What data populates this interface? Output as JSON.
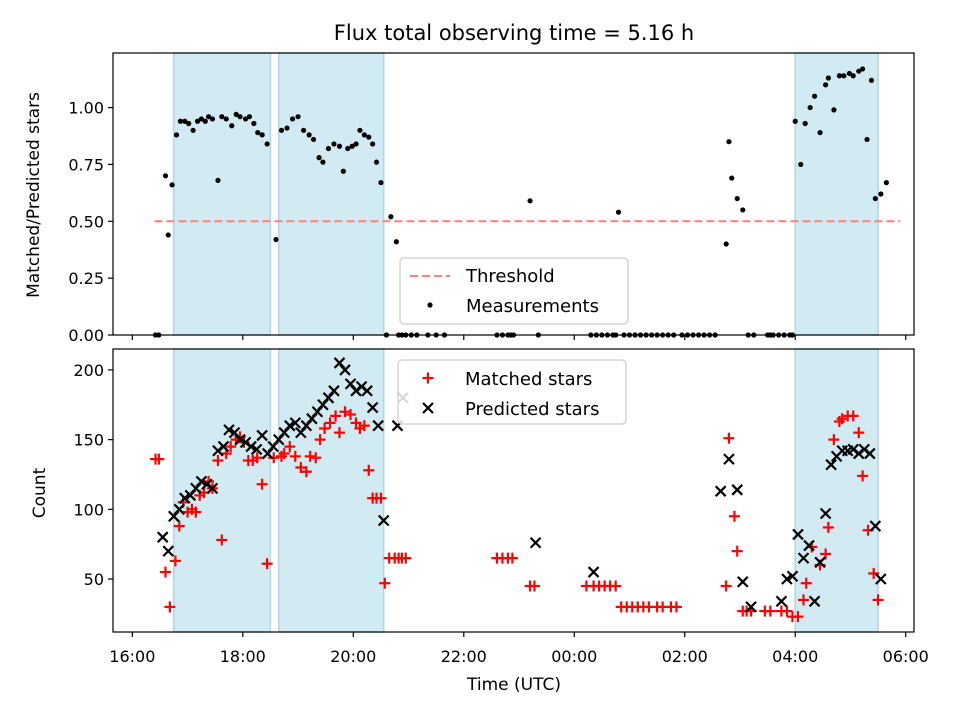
{
  "chart_data": [
    {
      "type": "scatter",
      "title": "Flux total observing time = 5.16 h",
      "xlabel": "",
      "ylabel": "Matched/Predicted stars",
      "xlim": [
        -0.35,
        14.15
      ],
      "ylim": [
        0,
        1.24
      ],
      "yticks": [
        0.0,
        0.25,
        0.5,
        0.75,
        1.0
      ],
      "ytick_labels": [
        "0.00",
        "0.25",
        "0.50",
        "0.75",
        "1.00"
      ],
      "xticks": [
        0,
        2,
        4,
        6,
        8,
        10,
        12,
        14
      ],
      "grid": false,
      "legend": {
        "position": "lower-center",
        "entries": [
          "Threshold",
          "Measurements"
        ]
      },
      "threshold": {
        "name": "Threshold",
        "value": 0.5,
        "x_range": [
          0.4,
          13.9
        ],
        "color": "#ff7f7f"
      },
      "shaded_regions": [
        [
          0.75,
          2.5
        ],
        [
          2.65,
          4.55
        ],
        [
          12.0,
          13.5
        ]
      ],
      "colors": {
        "measurements": "#000000",
        "shade": "#add8e6"
      },
      "series": [
        {
          "name": "Measurements",
          "x": [
            0.42,
            0.48,
            0.6,
            0.65,
            0.72,
            0.8,
            0.87,
            0.95,
            1.02,
            1.1,
            1.18,
            1.25,
            1.32,
            1.38,
            1.45,
            1.55,
            1.62,
            1.7,
            1.8,
            1.88,
            1.95,
            2.05,
            2.12,
            2.2,
            2.27,
            2.35,
            2.44,
            2.6,
            2.7,
            2.8,
            2.9,
            3.0,
            3.1,
            3.2,
            3.28,
            3.38,
            3.45,
            3.55,
            3.65,
            3.75,
            3.82,
            3.9,
            3.98,
            4.05,
            4.12,
            4.2,
            4.28,
            4.35,
            4.42,
            4.5,
            4.6,
            4.68,
            4.78,
            4.82,
            4.88,
            4.95,
            5.05,
            5.15,
            5.35,
            5.5,
            5.65,
            6.6,
            6.7,
            6.8,
            6.85,
            6.9,
            7.2,
            7.35,
            8.3,
            8.4,
            8.5,
            8.6,
            8.7,
            8.75,
            8.8,
            8.9,
            9.0,
            9.1,
            9.2,
            9.3,
            9.4,
            9.5,
            9.6,
            9.7,
            9.8,
            9.95,
            10.05,
            10.15,
            10.25,
            10.35,
            10.45,
            10.55,
            10.75,
            10.8,
            10.85,
            10.95,
            11.05,
            11.15,
            11.25,
            11.95,
            11.5,
            11.55,
            11.6,
            11.7,
            11.8,
            11.9,
            12.0,
            12.1,
            12.18,
            12.27,
            12.35,
            12.45,
            12.55,
            12.6,
            12.7,
            12.8,
            12.88,
            12.98,
            13.05,
            13.15,
            13.22,
            13.3,
            13.38,
            13.45,
            13.55,
            13.65
          ],
          "y": [
            0.0,
            0.0,
            0.7,
            0.44,
            0.66,
            0.88,
            0.94,
            0.94,
            0.93,
            0.9,
            0.94,
            0.95,
            0.94,
            0.96,
            0.95,
            0.68,
            0.96,
            0.95,
            0.92,
            0.97,
            0.96,
            0.95,
            0.96,
            0.93,
            0.89,
            0.88,
            0.84,
            0.42,
            0.9,
            0.91,
            0.95,
            0.96,
            0.9,
            0.88,
            0.86,
            0.78,
            0.76,
            0.82,
            0.84,
            0.83,
            0.72,
            0.82,
            0.83,
            0.84,
            0.9,
            0.88,
            0.87,
            0.84,
            0.76,
            0.67,
            0.0,
            0.52,
            0.41,
            0.0,
            0.0,
            0.0,
            0.0,
            0.0,
            0.0,
            0.0,
            0.0,
            0.0,
            0.0,
            0.0,
            0.0,
            0.0,
            0.59,
            0.0,
            0.0,
            0.0,
            0.0,
            0.0,
            0.0,
            0.0,
            0.54,
            0.0,
            0.0,
            0.0,
            0.0,
            0.0,
            0.0,
            0.0,
            0.0,
            0.0,
            0.0,
            0.0,
            0.0,
            0.0,
            0.0,
            0.0,
            0.0,
            0.0,
            0.4,
            0.85,
            0.69,
            0.6,
            0.55,
            0.0,
            0.0,
            0.0,
            0.0,
            0.0,
            0.0,
            0.0,
            0.0,
            0.0,
            0.94,
            0.75,
            0.93,
            1.0,
            1.05,
            0.89,
            1.1,
            1.13,
            0.99,
            1.14,
            1.14,
            1.15,
            1.14,
            1.16,
            1.17,
            0.86,
            1.12,
            0.6,
            0.62,
            0.67
          ]
        }
      ]
    },
    {
      "type": "scatter",
      "title": "",
      "xlabel": "Time (UTC)",
      "ylabel": "Count",
      "xlim": [
        -0.35,
        14.15
      ],
      "ylim": [
        12,
        215
      ],
      "yticks": [
        50,
        100,
        150,
        200
      ],
      "ytick_labels": [
        "50",
        "100",
        "150",
        "200"
      ],
      "xticks": [
        0,
        2,
        4,
        6,
        8,
        10,
        12,
        14
      ],
      "xtick_labels": [
        "16:00",
        "18:00",
        "20:00",
        "22:00",
        "00:00",
        "02:00",
        "04:00",
        "06:00"
      ],
      "grid": false,
      "legend": {
        "position": "top-center",
        "entries": [
          "Matched stars",
          "Predicted stars"
        ]
      },
      "shaded_regions": [
        [
          0.75,
          2.5
        ],
        [
          2.65,
          4.55
        ],
        [
          12.0,
          13.5
        ]
      ],
      "colors": {
        "matched": "#ff0000",
        "predicted": "#000000",
        "shade": "#add8e6"
      },
      "series": [
        {
          "name": "Matched stars",
          "x": [
            0.42,
            0.48,
            0.6,
            0.68,
            0.78,
            0.85,
            0.92,
            1.0,
            1.08,
            1.15,
            1.22,
            1.3,
            1.38,
            1.45,
            1.55,
            1.62,
            1.7,
            1.78,
            1.88,
            1.95,
            2.02,
            2.1,
            2.18,
            2.26,
            2.35,
            2.44,
            2.56,
            2.7,
            2.75,
            2.85,
            2.95,
            3.05,
            3.15,
            3.22,
            3.32,
            3.4,
            3.48,
            3.58,
            3.68,
            3.75,
            3.85,
            3.95,
            4.05,
            4.12,
            4.2,
            4.28,
            4.35,
            4.42,
            4.5,
            4.57,
            4.65,
            4.75,
            4.82,
            4.88,
            4.95,
            6.6,
            6.7,
            6.8,
            6.88,
            7.2,
            7.28,
            8.22,
            8.35,
            8.45,
            8.55,
            8.65,
            8.75,
            8.85,
            8.95,
            9.05,
            9.15,
            9.25,
            9.35,
            9.5,
            9.6,
            9.75,
            9.85,
            10.75,
            10.8,
            10.9,
            10.95,
            11.05,
            11.12,
            11.2,
            11.45,
            11.55,
            11.75,
            11.85,
            11.95,
            12.05,
            12.15,
            12.2,
            12.3,
            12.45,
            12.55,
            12.6,
            12.7,
            12.8,
            12.85,
            12.95,
            13.05,
            13.15,
            13.22,
            13.32,
            13.42,
            13.5
          ],
          "y": [
            136,
            136,
            55,
            30,
            63,
            88,
            105,
            98,
            100,
            98,
            110,
            112,
            120,
            115,
            135,
            78,
            140,
            145,
            150,
            152,
            148,
            135,
            135,
            137,
            118,
            61,
            137,
            138,
            140,
            145,
            138,
            130,
            127,
            138,
            137,
            150,
            158,
            162,
            167,
            155,
            170,
            168,
            162,
            158,
            160,
            128,
            108,
            108,
            108,
            47,
            65,
            65,
            65,
            65,
            65,
            65,
            65,
            65,
            65,
            45,
            45,
            45,
            45,
            45,
            45,
            45,
            45,
            30,
            30,
            30,
            30,
            30,
            30,
            30,
            30,
            30,
            30,
            45,
            151,
            95,
            70,
            27,
            27,
            27,
            27,
            27,
            27,
            27,
            23,
            23,
            35,
            47,
            73,
            60,
            68,
            87,
            150,
            163,
            165,
            167,
            167,
            155,
            124,
            85,
            54,
            35
          ]
        },
        {
          "name": "Predicted stars",
          "x": [
            0.55,
            0.65,
            0.75,
            0.85,
            0.95,
            1.05,
            1.15,
            1.25,
            1.35,
            1.45,
            1.55,
            1.65,
            1.75,
            1.85,
            1.95,
            2.05,
            2.15,
            2.25,
            2.35,
            2.45,
            2.55,
            2.65,
            2.75,
            2.85,
            2.95,
            3.05,
            3.15,
            3.25,
            3.35,
            3.45,
            3.55,
            3.65,
            3.75,
            3.85,
            3.95,
            4.05,
            4.15,
            4.25,
            4.35,
            4.45,
            4.55,
            4.8,
            4.9,
            7.3,
            8.35,
            10.65,
            10.8,
            10.95,
            11.05,
            11.2,
            11.75,
            11.85,
            11.95,
            12.05,
            12.15,
            12.25,
            12.35,
            12.45,
            12.55,
            12.65,
            12.75,
            12.85,
            12.95,
            13.05,
            13.15,
            13.25,
            13.35,
            13.45,
            13.55
          ],
          "y": [
            80,
            70,
            95,
            100,
            108,
            110,
            115,
            120,
            118,
            115,
            142,
            145,
            157,
            155,
            150,
            148,
            145,
            143,
            153,
            140,
            145,
            150,
            155,
            160,
            162,
            155,
            160,
            165,
            170,
            175,
            180,
            185,
            205,
            200,
            190,
            185,
            188,
            185,
            173,
            160,
            92,
            160,
            180,
            76,
            55,
            113,
            136,
            114,
            48,
            30,
            34,
            50,
            52,
            82,
            65,
            74,
            34,
            62,
            97,
            132,
            138,
            142,
            142,
            143,
            140,
            143,
            140,
            88,
            50
          ]
        }
      ]
    }
  ]
}
